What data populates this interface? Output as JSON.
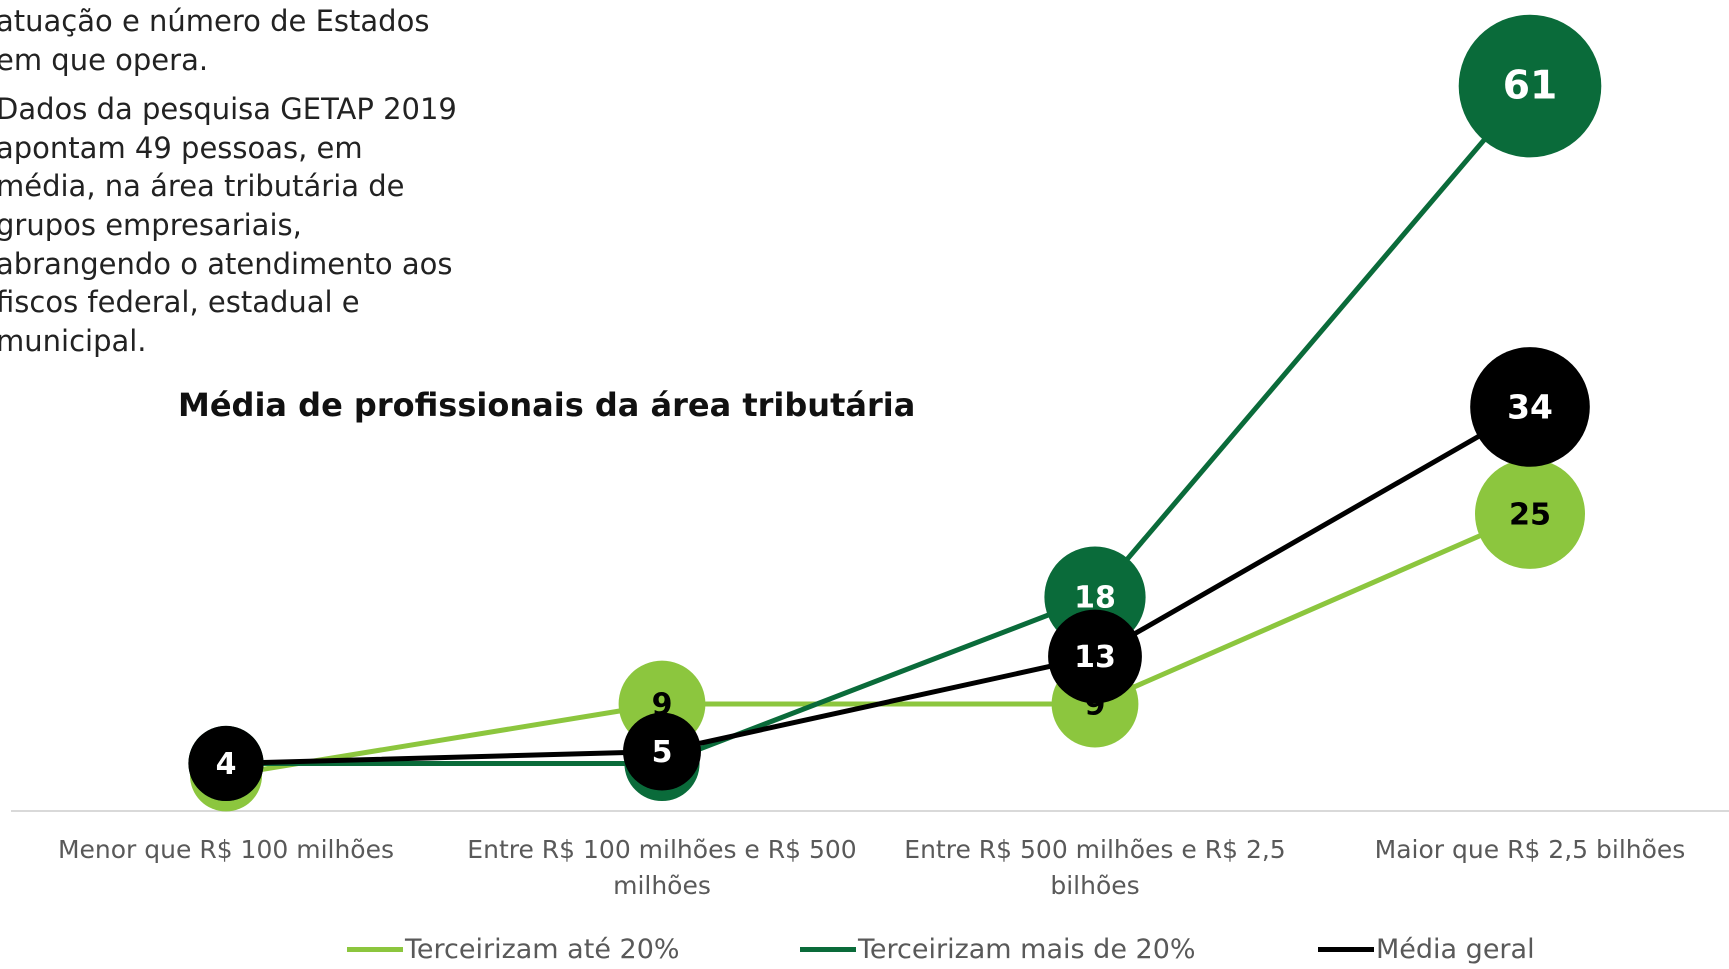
{
  "text_block": {
    "lines": [
      "atuação e número de Estados",
      "em que opera.",
      "Dados da pesquisa GETAP 2019",
      "apontam 49 pessoas, em",
      "média, na área tributária de",
      "grupos empresariais,",
      "abrangendo o atendimento aos",
      "fiscos federal, estadual e",
      "municipal."
    ]
  },
  "chart_data": {
    "type": "line",
    "title": "Média de profissionais da área tributária",
    "categories": [
      "Menor que R$ 100 milhões",
      "Entre R$ 100 milhões e R$ 500 milhões",
      "Entre R$ 500 milhões e R$ 2,5 bilhões",
      "Maior que R$ 2,5 bilhões"
    ],
    "series": [
      {
        "name": "Terceirizam até 20%",
        "color": "#8cc63e",
        "label_color": "#000000",
        "values": [
          3,
          9,
          9,
          25
        ]
      },
      {
        "name": "Terceirizam mais de 20%",
        "color": "#0a6b3a",
        "label_color": "#ffffff",
        "values": [
          4,
          4,
          18,
          61
        ]
      },
      {
        "name": "Média geral",
        "color": "#000000",
        "label_color": "#ffffff",
        "values": [
          4,
          5,
          13,
          34
        ]
      }
    ],
    "ylim": [
      0,
      65
    ],
    "legend": "bottom"
  }
}
